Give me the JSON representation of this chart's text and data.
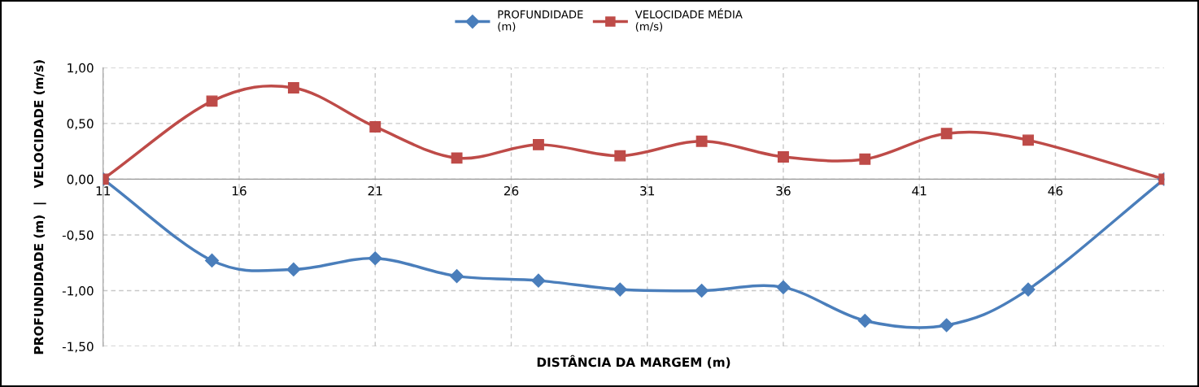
{
  "chart_data": {
    "type": "line",
    "xlabel": "DISTÂNCIA DA MARGEM (m)",
    "ylabel": "PROFUNDIDADE (m)  |   VELOCIDADE (m/s)",
    "x": [
      11,
      15,
      18,
      21,
      24,
      27,
      30,
      33,
      36,
      39,
      42,
      45,
      50
    ],
    "series": [
      {
        "name": "PROFUNDIDADE\n(m)",
        "color": "#4a7ebb",
        "marker": "diamond",
        "values": [
          0,
          -0.73,
          -0.81,
          -0.71,
          -0.87,
          -0.91,
          -0.99,
          -1.0,
          -0.97,
          -1.27,
          -1.31,
          -0.99,
          0
        ]
      },
      {
        "name": "VELOCIDADE MÉDIA\n(m/s)",
        "color": "#be4b48",
        "marker": "square",
        "values": [
          0,
          0.7,
          0.82,
          0.47,
          0.19,
          0.31,
          0.21,
          0.34,
          0.2,
          0.18,
          0.41,
          0.35,
          0
        ]
      }
    ],
    "xlim": [
      11,
      50
    ],
    "xticks": [
      11,
      16,
      21,
      26,
      31,
      36,
      41,
      46
    ],
    "ylim": [
      -1.5,
      1.0
    ],
    "yticks": [
      {
        "value": -1.5,
        "label": "-1,50"
      },
      {
        "value": -1.0,
        "label": "-1,00"
      },
      {
        "value": -0.5,
        "label": "-0,50"
      },
      {
        "value": 0,
        "label": "0,00"
      },
      {
        "value": 0.5,
        "label": "0,50"
      },
      {
        "value": 1.0,
        "label": "1,00"
      }
    ],
    "grid": true,
    "legend": "top",
    "line_style": "solid"
  }
}
